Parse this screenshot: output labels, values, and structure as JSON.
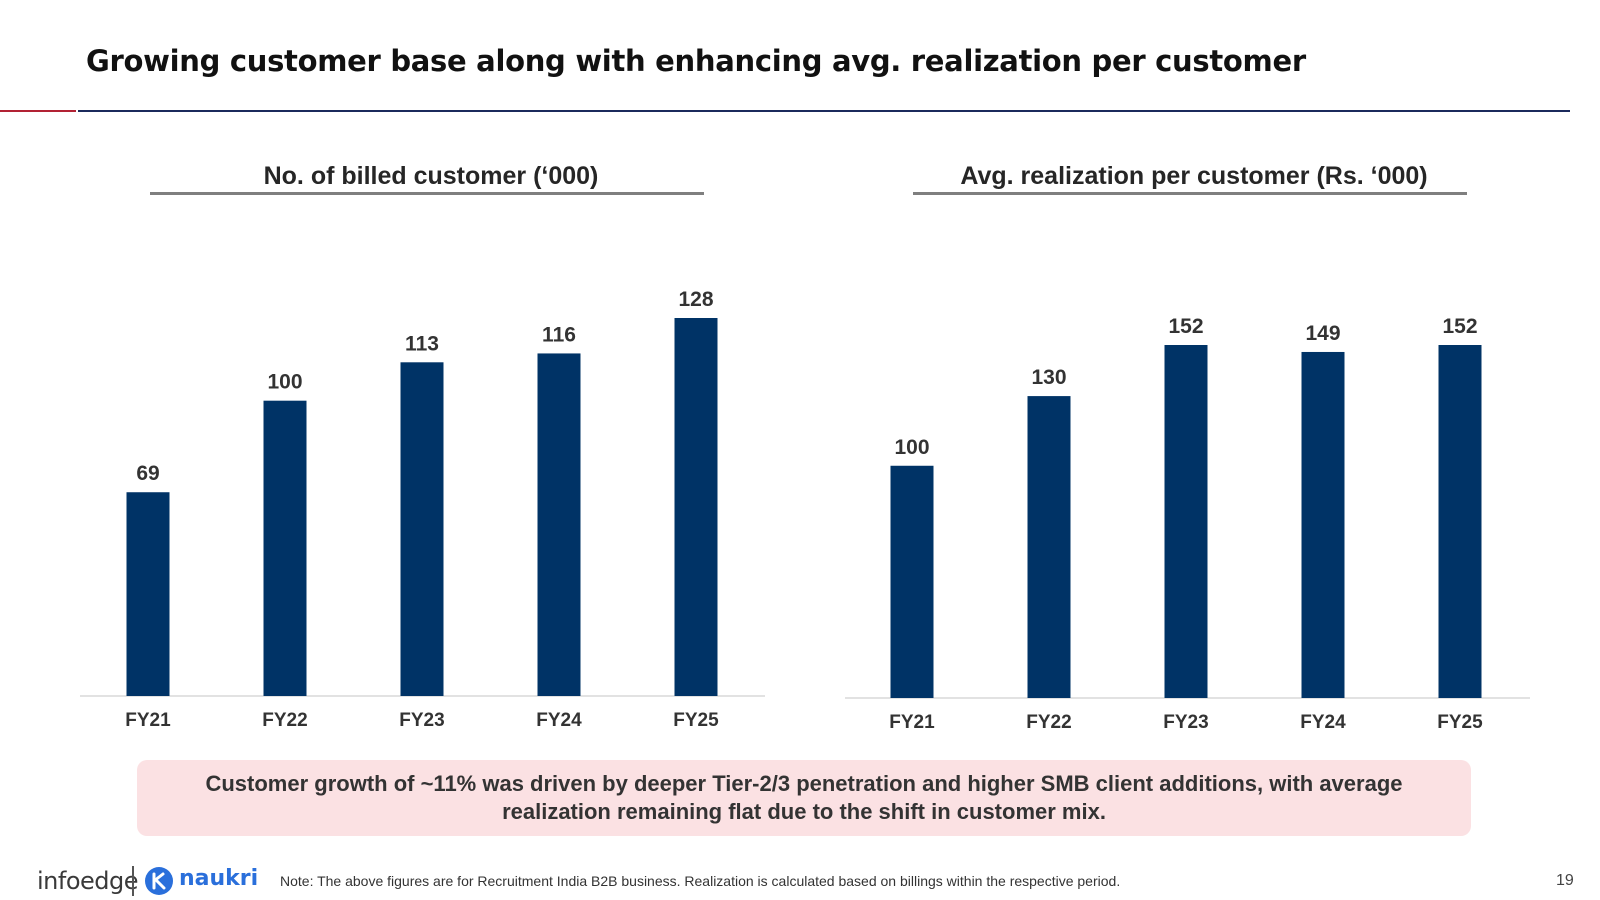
{
  "slide": {
    "title": "Growing customer base along with enhancing avg. realization per customer",
    "page_number": "19"
  },
  "chart_data": [
    {
      "type": "bar",
      "title": "No. of billed customer (‘000)",
      "categories": [
        "FY21",
        "FY22",
        "FY23",
        "FY24",
        "FY25"
      ],
      "values": [
        69,
        100,
        113,
        116,
        128
      ],
      "value_labels": [
        "69",
        "100",
        "113",
        "116",
        "128"
      ],
      "xlabel": "",
      "ylabel": "",
      "ylim": [
        0,
        128
      ],
      "grid": false,
      "bar_color": "#003366"
    },
    {
      "type": "bar",
      "title": "Avg. realization per customer (Rs. ‘000)",
      "categories": [
        "FY21",
        "FY22",
        "FY23",
        "FY24",
        "FY25"
      ],
      "values": [
        100,
        130,
        152,
        149,
        152
      ],
      "value_labels": [
        "100",
        "130",
        "152",
        "149",
        "152"
      ],
      "xlabel": "",
      "ylabel": "",
      "ylim": [
        0,
        152
      ],
      "grid": false,
      "bar_color": "#003366"
    }
  ],
  "callout": {
    "text": "Customer growth of ~11% was driven by deeper Tier-2/3 penetration and higher SMB client additions, with average realization remaining flat due to the shift in customer mix."
  },
  "footer": {
    "logo_infoedge": "infoedge",
    "logo_naukri": "naukri",
    "note": "Note: The above figures are for Recruitment India B2B business. Realization is calculated based on billings within the respective period."
  },
  "colors": {
    "accent_red": "#b22234",
    "accent_navy": "#1b2a5c",
    "bar": "#003366",
    "callout_bg": "#fbe1e3",
    "naukri_blue": "#2a6fdb"
  }
}
